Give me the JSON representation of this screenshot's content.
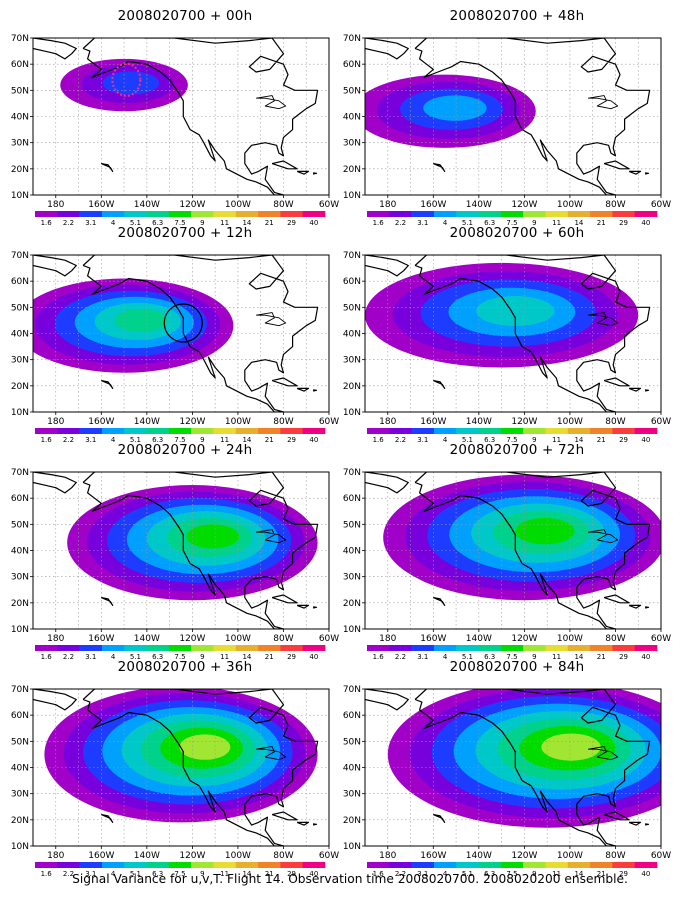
{
  "map_data": {
    "panels": [
      {
        "title": "2008020700 + 00h"
      },
      {
        "title": "2008020700 + 48h"
      },
      {
        "title": "2008020700 + 12h"
      },
      {
        "title": "2008020700 + 60h"
      },
      {
        "title": "2008020700 + 24h"
      },
      {
        "title": "2008020700 + 72h"
      },
      {
        "title": "2008020700 + 36h"
      },
      {
        "title": "2008020700 + 84h"
      }
    ],
    "lat_labels": [
      "10N",
      "20N",
      "30N",
      "40N",
      "50N",
      "60N",
      "70N"
    ],
    "lon_labels": [
      "180",
      "160W",
      "140W",
      "120W",
      "100W",
      "80W",
      "60W"
    ],
    "colorbar": {
      "levels": [
        "1.6",
        "2.2",
        "3.1",
        "4",
        "5.1",
        "6.3",
        "7.5",
        "9",
        "11",
        "14",
        "21",
        "29",
        "40"
      ],
      "colors": [
        "#a000c8",
        "#7800dc",
        "#1e3cff",
        "#00a0ff",
        "#00c8c8",
        "#00d28c",
        "#00dc00",
        "#a0e632",
        "#e6dc32",
        "#e6af2d",
        "#f08228",
        "#fa3c3c",
        "#f00082"
      ]
    },
    "shading": [
      {
        "level": 2,
        "c": [
          -150,
          52
        ],
        "r": [
          28,
          10
        ]
      },
      {
        "level": 3,
        "c": [
          -155,
          42
        ],
        "r": [
          40,
          14
        ]
      },
      {
        "level": 5,
        "c": [
          -150,
          43
        ],
        "r": [
          48,
          18
        ]
      },
      {
        "level": 4,
        "c": [
          -130,
          47
        ],
        "r": [
          60,
          20
        ]
      },
      {
        "level": 6,
        "c": [
          -120,
          43
        ],
        "r": [
          55,
          22
        ]
      },
      {
        "level": 6,
        "c": [
          -120,
          45
        ],
        "r": [
          62,
          24
        ]
      },
      {
        "level": 7,
        "c": [
          -125,
          45
        ],
        "r": [
          60,
          26
        ]
      },
      {
        "level": 7,
        "c": [
          -110,
          45
        ],
        "r": [
          70,
          28
        ]
      }
    ],
    "footer": "Signal Variance for u,v,T. Flight 14. Observation time 2008020700. 2008020200 ensemble."
  }
}
